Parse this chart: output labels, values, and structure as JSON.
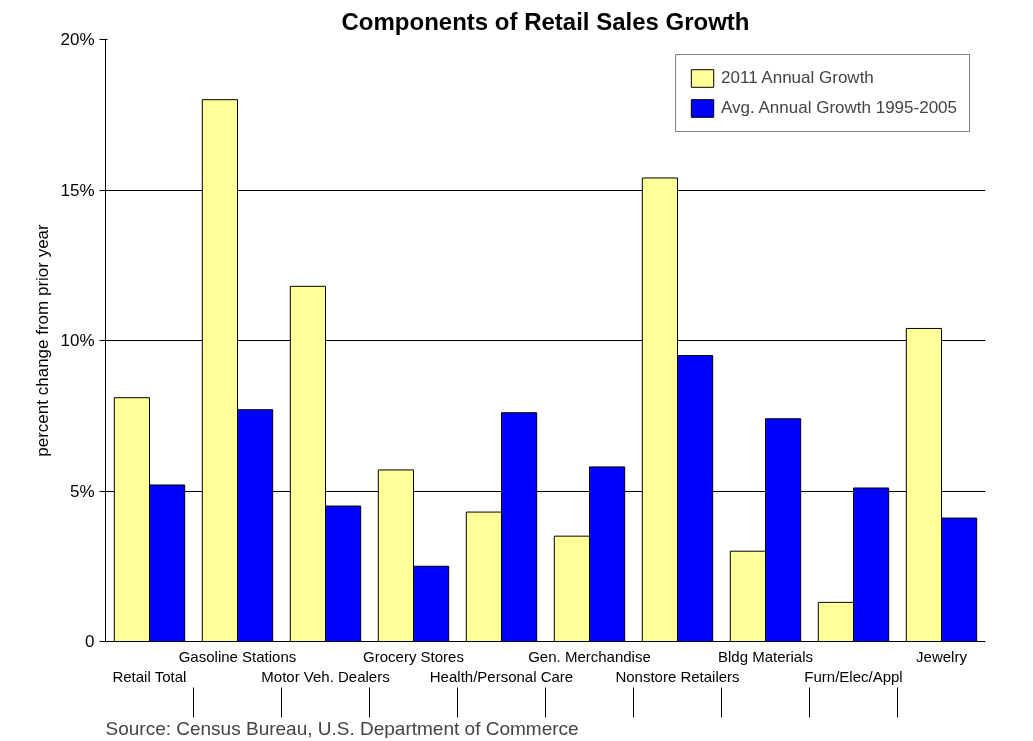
{
  "chart_data": {
    "type": "bar",
    "title": "Components of Retail Sales Growth",
    "ylabel": "percent change from prior year",
    "categories": [
      "Retail Total",
      "Gasoline Stations",
      "Motor Veh. Dealers",
      "Grocery Stores",
      "Health/Personal Care",
      "Gen. Merchandise",
      "Nonstore Retailers",
      "Bldg Materials",
      "Furn/Elec/Appl",
      "Jewelry"
    ],
    "series": [
      {
        "name": "2011 Annual Growth",
        "color": "#ffff99",
        "values": [
          8.1,
          18.0,
          11.8,
          5.7,
          4.3,
          3.5,
          15.4,
          3.0,
          1.3,
          10.4
        ]
      },
      {
        "name": "Avg. Annual Growth 1995-2005",
        "color": "#0000ff",
        "values": [
          5.2,
          7.7,
          4.5,
          2.5,
          7.6,
          5.8,
          9.5,
          7.4,
          5.1,
          4.1
        ]
      }
    ],
    "ylim": [
      0,
      20
    ],
    "yticks": [
      0,
      {
        "value": 5,
        "label": "5%"
      },
      {
        "value": 10,
        "label": "10%"
      },
      {
        "value": 15,
        "label": "15%"
      },
      {
        "value": 20,
        "label": "20%"
      }
    ],
    "grid": "y",
    "legend": "top right",
    "annotations": [
      "Source: Census Bureau, U.S. Department of Commerce"
    ]
  }
}
